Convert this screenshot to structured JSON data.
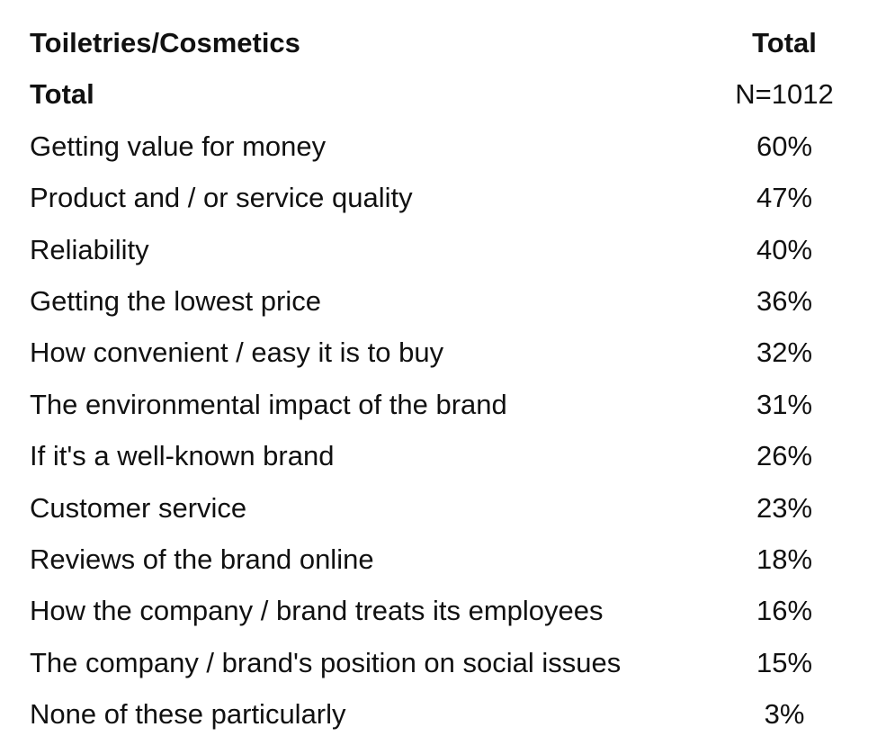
{
  "table": {
    "header": {
      "label": "Toiletries/Cosmetics",
      "total": "Total"
    },
    "rows": [
      {
        "label": "Total",
        "value": "N=1012"
      },
      {
        "label": "Getting value for money",
        "value": "60%"
      },
      {
        "label": "Product and / or service quality",
        "value": "47%"
      },
      {
        "label": "Reliability",
        "value": "40%"
      },
      {
        "label": "Getting the lowest price",
        "value": "36%"
      },
      {
        "label": "How convenient / easy it is to buy",
        "value": "32%"
      },
      {
        "label": "The environmental impact of the brand",
        "value": "31%"
      },
      {
        "label": "If it's a well-known brand",
        "value": "26%"
      },
      {
        "label": "Customer service",
        "value": "23%"
      },
      {
        "label": "Reviews of the brand online",
        "value": "18%"
      },
      {
        "label": "How the company / brand treats its employees",
        "value": "16%"
      },
      {
        "label": "The company / brand's position on social issues",
        "value": "15%"
      },
      {
        "label": "None of these particularly",
        "value": "3%"
      }
    ]
  }
}
